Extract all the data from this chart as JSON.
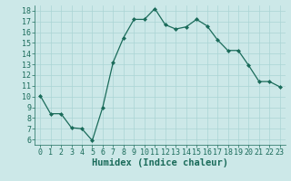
{
  "x": [
    0,
    1,
    2,
    3,
    4,
    5,
    6,
    7,
    8,
    9,
    10,
    11,
    12,
    13,
    14,
    15,
    16,
    17,
    18,
    19,
    20,
    21,
    22,
    23
  ],
  "y": [
    10.1,
    8.4,
    8.4,
    7.1,
    7.0,
    5.9,
    9.0,
    13.2,
    15.5,
    17.2,
    17.2,
    18.2,
    16.7,
    16.3,
    16.5,
    17.2,
    16.6,
    15.3,
    14.3,
    14.3,
    12.9,
    11.4,
    11.4,
    10.9
  ],
  "line_color": "#1a6b5a",
  "marker": "D",
  "marker_size": 2.0,
  "bg_color": "#cce8e8",
  "xlabel": "Humidex (Indice chaleur)",
  "ylim": [
    5.5,
    18.5
  ],
  "xlim": [
    -0.5,
    23.5
  ],
  "yticks": [
    6,
    7,
    8,
    9,
    10,
    11,
    12,
    13,
    14,
    15,
    16,
    17,
    18
  ],
  "xticks": [
    0,
    1,
    2,
    3,
    4,
    5,
    6,
    7,
    8,
    9,
    10,
    11,
    12,
    13,
    14,
    15,
    16,
    17,
    18,
    19,
    20,
    21,
    22,
    23
  ],
  "grid_color": "#aad4d4",
  "tick_label_fontsize": 6.0,
  "xlabel_fontsize": 7.5,
  "line_width": 0.9
}
